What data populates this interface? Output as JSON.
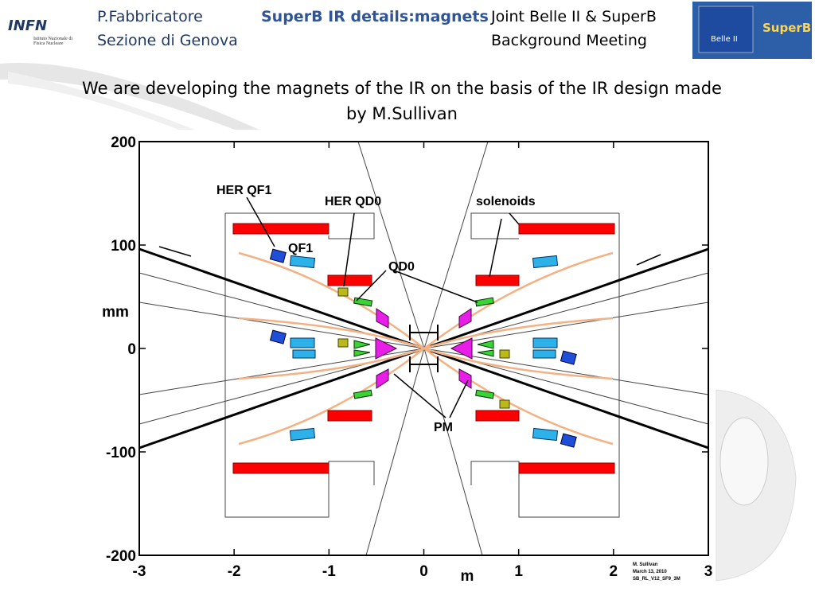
{
  "header": {
    "author": "P.Fabbricatore",
    "affiliation": "Sezione di Genova",
    "title": "SuperB IR details:magnets",
    "meeting_line1": "Joint Belle II & SuperB",
    "meeting_line2": "Background Meeting",
    "logo_left": "INFN",
    "logo_left_sub": "Istituto Nazionale di Fisica Nucleare",
    "logo_right_a": "Belle II",
    "logo_right_b": "SuperB"
  },
  "subtitle": "We are developing the magnets of the IR on the basis of the IR design made by M.Sullivan",
  "figure": {
    "xlabel": "m",
    "ylabel": "mm",
    "xlim": [
      -3,
      3
    ],
    "ylim": [
      -200,
      200
    ],
    "xticks": [
      -3,
      -2,
      -1,
      0,
      1,
      2,
      3
    ],
    "yticks": [
      -200,
      -100,
      0,
      100,
      200
    ],
    "annotations": [
      "HER QF1",
      "HER QD0",
      "solenoids",
      "QF1",
      "QD0",
      "PM"
    ],
    "credit": [
      "M. Sullivan",
      "March 13, 2010",
      "SB_RL_V12_SF9_3M"
    ]
  }
}
